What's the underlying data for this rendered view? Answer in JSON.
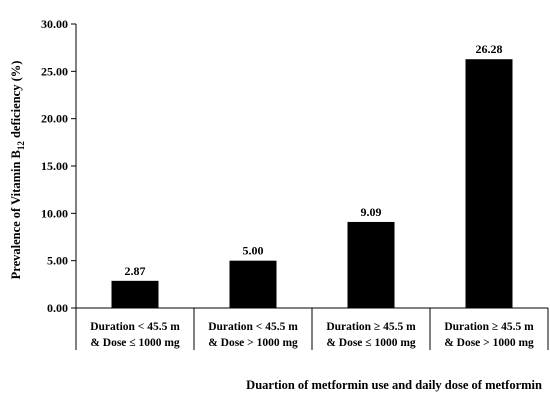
{
  "chart_data": {
    "type": "bar",
    "categories": [
      [
        "Duration < 45.5 m",
        "& Dose ≤ 1000 mg"
      ],
      [
        "Duration < 45.5 m",
        "& Dose > 1000 mg"
      ],
      [
        "Duration ≥ 45.5 m",
        "& Dose ≤ 1000 mg"
      ],
      [
        "Duration ≥ 45.5 m",
        "& Dose > 1000 mg"
      ]
    ],
    "values": [
      2.87,
      5.0,
      9.09,
      26.28
    ],
    "value_labels": [
      "2.87",
      "5.00",
      "9.09",
      "26.28"
    ],
    "ylim": [
      0,
      30
    ],
    "yticks": [
      "0.00",
      "5.00",
      "10.00",
      "15.00",
      "20.00",
      "25.00",
      "30.00"
    ],
    "ylabel": {
      "prefix": "Prevalence of Vitamin B",
      "subscript": "12",
      "suffix": " deficiency (%)"
    },
    "xlabel": "Duartion of metformin use and daily dose of metformin",
    "bar_color": "#000000",
    "grid": false
  }
}
